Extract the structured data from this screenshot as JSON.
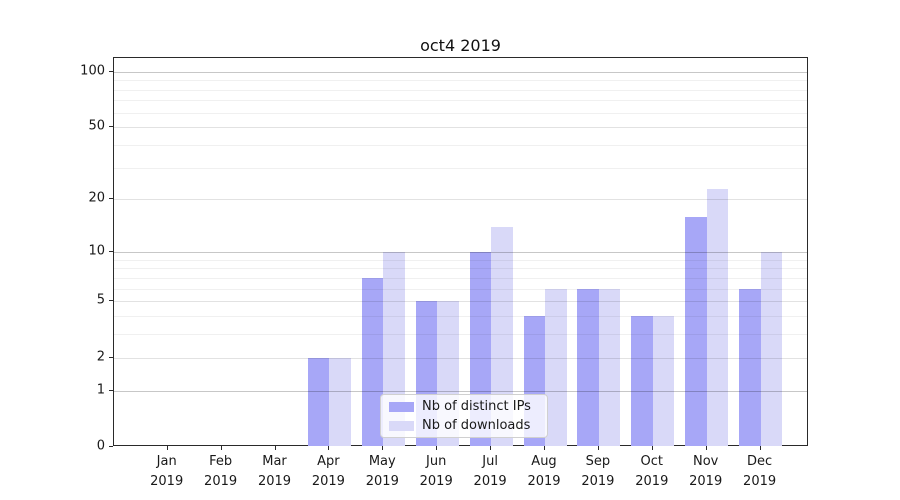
{
  "chart_data": {
    "type": "bar",
    "title": "oct4 2019",
    "categories": [
      "Jan",
      "Feb",
      "Mar",
      "Apr",
      "May",
      "Jun",
      "Jul",
      "Aug",
      "Sep",
      "Oct",
      "Nov",
      "Dec"
    ],
    "year_label": "2019",
    "series": [
      {
        "name": "Nb of distinct IPs",
        "color": "#a7a7f7",
        "values": [
          0,
          0,
          0,
          2,
          7,
          5,
          10,
          4,
          6,
          4,
          16,
          6
        ]
      },
      {
        "name": "Nb of downloads",
        "color": "#d9d9f8",
        "values": [
          0,
          0,
          0,
          2,
          10,
          5,
          14,
          6,
          6,
          4,
          23,
          10
        ]
      }
    ],
    "xlabel": "",
    "ylabel": "",
    "y_axis": {
      "scale": "log10(1+value)",
      "ticks": [
        100,
        50,
        20,
        10,
        5,
        2,
        1,
        0
      ],
      "major_grid_values": [
        1,
        10,
        100
      ],
      "mid_grid_values": [
        2,
        5,
        20,
        50
      ],
      "minor_grid_values": [
        3,
        4,
        6,
        7,
        8,
        9,
        30,
        40,
        60,
        70,
        80,
        90
      ],
      "ylim": [
        0,
        118
      ]
    },
    "legend": {
      "position": "lower center inside plot"
    },
    "grid": "on"
  }
}
